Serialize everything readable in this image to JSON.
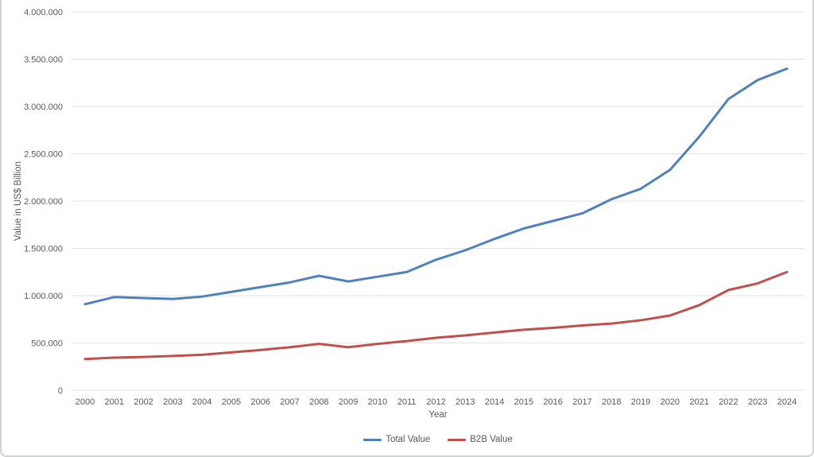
{
  "chart_data": {
    "type": "line",
    "title": "",
    "xlabel": "Year",
    "ylabel": "Value in US$ Billion",
    "x": [
      2000,
      2001,
      2002,
      2003,
      2004,
      2005,
      2006,
      2007,
      2008,
      2009,
      2010,
      2011,
      2012,
      2013,
      2014,
      2015,
      2016,
      2017,
      2018,
      2019,
      2020,
      2021,
      2022,
      2023,
      2024
    ],
    "ylim": [
      0,
      4000000
    ],
    "grid": true,
    "legend_position": "bottom",
    "y_ticks": [
      {
        "value": 0,
        "label": "0"
      },
      {
        "value": 500000,
        "label": "500.000"
      },
      {
        "value": 1000000,
        "label": "1.000.000"
      },
      {
        "value": 1500000,
        "label": "1.500.000"
      },
      {
        "value": 2000000,
        "label": "2.000.000"
      },
      {
        "value": 2500000,
        "label": "2.500.000"
      },
      {
        "value": 3000000,
        "label": "3.000.000"
      },
      {
        "value": 3500000,
        "label": "3.500.000"
      },
      {
        "value": 4000000,
        "label": "4.000.000"
      }
    ],
    "series": [
      {
        "name": "Total Value",
        "color": "#4F81BD",
        "values": [
          910000,
          985000,
          975000,
          965000,
          990000,
          1040000,
          1090000,
          1140000,
          1210000,
          1150000,
          1200000,
          1250000,
          1380000,
          1480000,
          1600000,
          1710000,
          1790000,
          1870000,
          2020000,
          2130000,
          2330000,
          2680000,
          3080000,
          3280000,
          3400000
        ]
      },
      {
        "name": "B2B Value",
        "color": "#C0504D",
        "values": [
          330000,
          345000,
          352000,
          362000,
          375000,
          400000,
          425000,
          455000,
          490000,
          455000,
          490000,
          520000,
          555000,
          580000,
          610000,
          640000,
          660000,
          685000,
          705000,
          740000,
          790000,
          900000,
          1060000,
          1130000,
          1250000
        ]
      }
    ]
  },
  "colors": {
    "gridline": "#E2E2E2",
    "axis_text": "#595959",
    "window_border": "#D0D3D6"
  }
}
